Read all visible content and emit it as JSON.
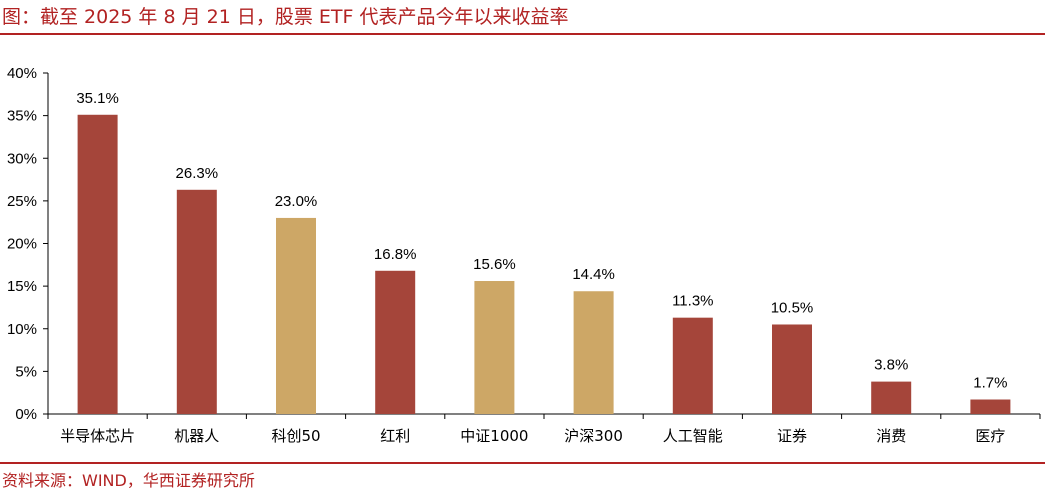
{
  "title": "图：截至 2025 年 8 月 21 日，股票 ETF 代表产品今年以来收益率",
  "source": "资料来源：WIND，华西证券研究所",
  "colors": {
    "brand": "#b22222",
    "bar_red": "#a5453a",
    "bar_gold": "#cda766"
  },
  "chart_data": {
    "type": "bar",
    "categories": [
      "半导体芯片",
      "机器人",
      "科创50",
      "红利",
      "中证1000",
      "沪深300",
      "人工智能",
      "证券",
      "消费",
      "医疗"
    ],
    "values": [
      35.1,
      26.3,
      23.0,
      16.8,
      15.6,
      14.4,
      11.3,
      10.5,
      3.8,
      1.7
    ],
    "data_labels": [
      "35.1%",
      "26.3%",
      "23.0%",
      "16.8%",
      "15.6%",
      "14.4%",
      "11.3%",
      "10.5%",
      "3.8%",
      "1.7%"
    ],
    "bar_colors": [
      "#a5453a",
      "#a5453a",
      "#cda766",
      "#a5453a",
      "#cda766",
      "#cda766",
      "#a5453a",
      "#a5453a",
      "#a5453a",
      "#a5453a"
    ],
    "y_ticks": [
      "0%",
      "5%",
      "10%",
      "15%",
      "20%",
      "25%",
      "30%",
      "35%",
      "40%"
    ],
    "ylim": [
      0,
      40
    ],
    "grid": false,
    "legend": "none"
  }
}
